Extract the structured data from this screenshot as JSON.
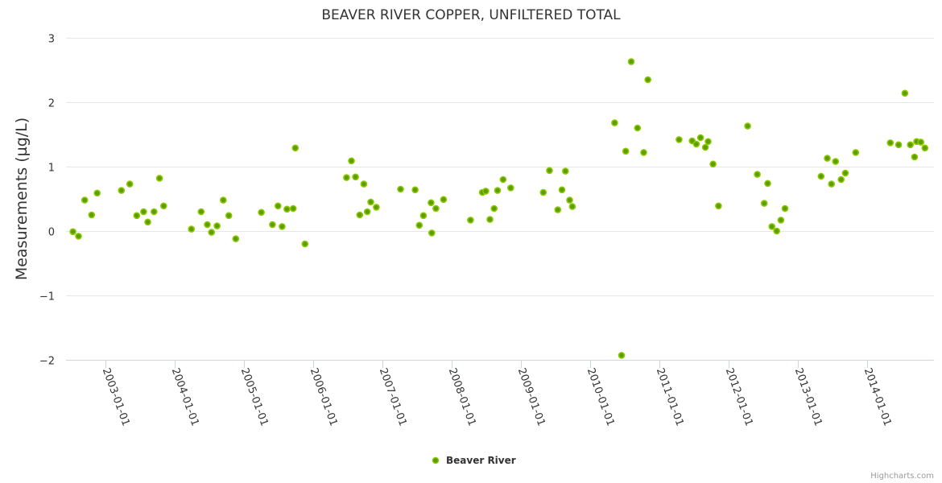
{
  "chart_data": {
    "type": "scatter",
    "title": "BEAVER RIVER COPPER, UNFILTERED TOTAL",
    "xlabel": "",
    "ylabel": "Measurements (µg/L)",
    "x_unit": "decimal year",
    "xlim": [
      2002.43,
      2014.96
    ],
    "ylim": [
      -2,
      3
    ],
    "yticks": [
      -2,
      -1,
      0,
      1,
      2,
      3
    ],
    "ytick_labels": [
      "−2",
      "−1",
      "0",
      "1",
      "2",
      "3"
    ],
    "xticks": [
      2003,
      2004,
      2005,
      2006,
      2007,
      2008,
      2009,
      2010,
      2011,
      2012,
      2013,
      2014
    ],
    "xtick_labels": [
      "2003-01-01",
      "2004-01-01",
      "2005-01-01",
      "2006-01-01",
      "2007-01-01",
      "2008-01-01",
      "2009-01-01",
      "2010-01-01",
      "2011-01-01",
      "2012-01-01",
      "2013-01-01",
      "2014-01-01"
    ],
    "grid": true,
    "legend_position": "bottom-center",
    "series": [
      {
        "name": "Beaver River",
        "color": "#5c9e00",
        "points": [
          [
            2002.53,
            -0.01
          ],
          [
            2002.61,
            -0.08
          ],
          [
            2002.7,
            0.48
          ],
          [
            2002.8,
            0.25
          ],
          [
            2002.88,
            0.59
          ],
          [
            2003.23,
            0.63
          ],
          [
            2003.35,
            0.73
          ],
          [
            2003.45,
            0.24
          ],
          [
            2003.55,
            0.3
          ],
          [
            2003.61,
            0.14
          ],
          [
            2003.7,
            0.3
          ],
          [
            2003.78,
            0.82
          ],
          [
            2003.84,
            0.39
          ],
          [
            2004.24,
            0.03
          ],
          [
            2004.38,
            0.3
          ],
          [
            2004.47,
            0.1
          ],
          [
            2004.53,
            -0.02
          ],
          [
            2004.61,
            0.08
          ],
          [
            2004.7,
            0.48
          ],
          [
            2004.78,
            0.24
          ],
          [
            2004.88,
            -0.12
          ],
          [
            2005.25,
            0.29
          ],
          [
            2005.41,
            0.1
          ],
          [
            2005.49,
            0.39
          ],
          [
            2005.55,
            0.07
          ],
          [
            2005.62,
            0.34
          ],
          [
            2005.71,
            0.35
          ],
          [
            2005.74,
            1.29
          ],
          [
            2005.88,
            -0.2
          ],
          [
            2006.48,
            0.83
          ],
          [
            2006.55,
            1.09
          ],
          [
            2006.61,
            0.84
          ],
          [
            2006.67,
            0.25
          ],
          [
            2006.73,
            0.73
          ],
          [
            2006.78,
            0.3
          ],
          [
            2006.83,
            0.45
          ],
          [
            2006.91,
            0.37
          ],
          [
            2007.26,
            0.65
          ],
          [
            2007.47,
            0.64
          ],
          [
            2007.53,
            0.09
          ],
          [
            2007.59,
            0.24
          ],
          [
            2007.7,
            0.44
          ],
          [
            2007.71,
            -0.03
          ],
          [
            2007.77,
            0.35
          ],
          [
            2007.88,
            0.49
          ],
          [
            2008.27,
            0.17
          ],
          [
            2008.44,
            0.6
          ],
          [
            2008.49,
            0.62
          ],
          [
            2008.55,
            0.18
          ],
          [
            2008.61,
            0.35
          ],
          [
            2008.66,
            0.63
          ],
          [
            2008.74,
            0.8
          ],
          [
            2008.85,
            0.67
          ],
          [
            2009.32,
            0.6
          ],
          [
            2009.41,
            0.94
          ],
          [
            2009.53,
            0.33
          ],
          [
            2009.59,
            0.64
          ],
          [
            2009.64,
            0.93
          ],
          [
            2009.7,
            0.48
          ],
          [
            2009.74,
            0.38
          ],
          [
            2010.35,
            1.68
          ],
          [
            2010.45,
            -1.93
          ],
          [
            2010.51,
            1.24
          ],
          [
            2010.59,
            2.63
          ],
          [
            2010.68,
            1.6
          ],
          [
            2010.77,
            1.22
          ],
          [
            2010.83,
            2.35
          ],
          [
            2011.28,
            1.42
          ],
          [
            2011.47,
            1.4
          ],
          [
            2011.53,
            1.35
          ],
          [
            2011.59,
            1.45
          ],
          [
            2011.66,
            1.3
          ],
          [
            2011.7,
            1.39
          ],
          [
            2011.77,
            1.04
          ],
          [
            2011.85,
            0.39
          ],
          [
            2012.27,
            1.63
          ],
          [
            2012.41,
            0.88
          ],
          [
            2012.51,
            0.43
          ],
          [
            2012.56,
            0.74
          ],
          [
            2012.62,
            0.07
          ],
          [
            2012.69,
            0.0
          ],
          [
            2012.75,
            0.17
          ],
          [
            2012.81,
            0.35
          ],
          [
            2013.33,
            0.85
          ],
          [
            2013.42,
            1.13
          ],
          [
            2013.48,
            0.73
          ],
          [
            2013.54,
            1.08
          ],
          [
            2013.62,
            0.8
          ],
          [
            2013.68,
            0.9
          ],
          [
            2013.83,
            1.22
          ],
          [
            2014.33,
            1.37
          ],
          [
            2014.45,
            1.34
          ],
          [
            2014.54,
            2.14
          ],
          [
            2014.62,
            1.34
          ],
          [
            2014.68,
            1.15
          ],
          [
            2014.71,
            1.39
          ],
          [
            2014.77,
            1.38
          ],
          [
            2014.83,
            1.29
          ]
        ]
      }
    ]
  },
  "credits": "Highcharts.com"
}
